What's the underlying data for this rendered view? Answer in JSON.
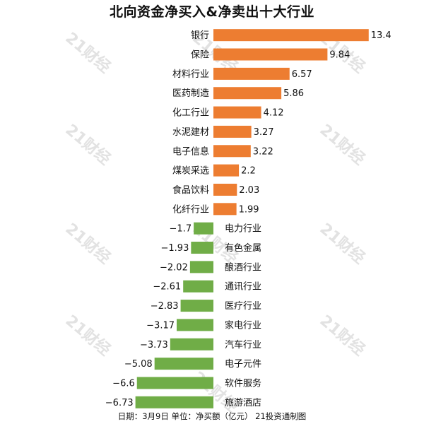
{
  "title": "北向资金净买入&净卖出十大行业",
  "footer": "日期：3月9日 单位：净买额（亿元） 21投资通制图",
  "watermark": "21财经",
  "colors": {
    "positive": "#ed7d31",
    "negative": "#70ad47",
    "watermark": "#d7d7d7"
  },
  "chart_data": {
    "type": "bar",
    "orientation": "horizontal",
    "title": "北向资金净买入&净卖出十大行业",
    "categories": [
      "银行",
      "保险",
      "材料行业",
      "医药制造",
      "化工行业",
      "水泥建材",
      "电子信息",
      "煤炭采选",
      "食品饮料",
      "化纤行业",
      "电力行业",
      "有色金属",
      "酿酒行业",
      "通讯行业",
      "医疗行业",
      "家电行业",
      "汽车行业",
      "电子元件",
      "软件服务",
      "旅游酒店"
    ],
    "values": [
      13.4,
      9.84,
      6.57,
      5.86,
      4.12,
      3.27,
      3.22,
      2.2,
      2.03,
      1.99,
      -1.7,
      -1.93,
      -2.02,
      -2.61,
      -2.83,
      -3.17,
      -3.73,
      -5.08,
      -6.6,
      -6.73
    ],
    "value_labels": [
      "13.4",
      "9.84",
      "6.57",
      "5.86",
      "4.12",
      "3.27",
      "3.22",
      "2.2",
      "2.03",
      "1.99",
      "−1.7",
      "−1.93",
      "−2.02",
      "−2.61",
      "−2.83",
      "−3.17",
      "−3.73",
      "−5.08",
      "−6.6",
      "−6.73"
    ],
    "unit_note": "单位：净买额（亿元）",
    "grid": false,
    "legend": "none"
  }
}
